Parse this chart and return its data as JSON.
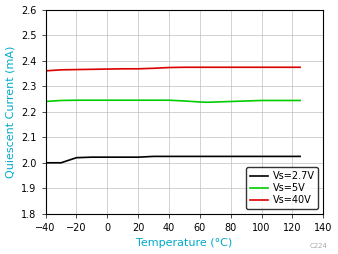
{
  "title": "",
  "xlabel": "Temperature (°C)",
  "ylabel": "Quiescent Current (mA)",
  "xlim": [
    -40,
    140
  ],
  "ylim": [
    1.8,
    2.6
  ],
  "xticks": [
    -40,
    -20,
    0,
    20,
    40,
    60,
    80,
    100,
    120,
    140
  ],
  "yticks": [
    1.8,
    1.9,
    2.0,
    2.1,
    2.2,
    2.3,
    2.4,
    2.5,
    2.6
  ],
  "background_color": "#ffffff",
  "grid_color": "#c0c0c0",
  "axis_label_color": "#00aacc",
  "tick_label_color": "#000000",
  "series": [
    {
      "label": "Vs=2.7V",
      "color": "#000000",
      "x": [
        -40,
        -30,
        -20,
        -10,
        0,
        10,
        20,
        30,
        40,
        50,
        60,
        70,
        80,
        90,
        100,
        110,
        120,
        125
      ],
      "y": [
        2.0,
        2.0,
        2.02,
        2.022,
        2.022,
        2.022,
        2.022,
        2.025,
        2.025,
        2.025,
        2.025,
        2.025,
        2.025,
        2.025,
        2.025,
        2.025,
        2.025,
        2.025
      ]
    },
    {
      "label": "Vs=5V",
      "color": "#00cc00",
      "x": [
        -40,
        -30,
        -20,
        -10,
        0,
        10,
        20,
        30,
        40,
        50,
        55,
        60,
        65,
        70,
        80,
        90,
        100,
        110,
        120,
        125
      ],
      "y": [
        2.24,
        2.244,
        2.245,
        2.245,
        2.245,
        2.245,
        2.245,
        2.245,
        2.245,
        2.242,
        2.24,
        2.238,
        2.237,
        2.238,
        2.24,
        2.242,
        2.244,
        2.244,
        2.244,
        2.244
      ]
    },
    {
      "label": "Vs=40V",
      "color": "#dd0000",
      "x": [
        -40,
        -30,
        -20,
        -10,
        0,
        10,
        20,
        30,
        40,
        50,
        60,
        70,
        80,
        90,
        100,
        110,
        120,
        125
      ],
      "y": [
        2.36,
        2.364,
        2.365,
        2.366,
        2.367,
        2.368,
        2.368,
        2.37,
        2.373,
        2.374,
        2.374,
        2.374,
        2.374,
        2.374,
        2.374,
        2.374,
        2.374,
        2.374
      ]
    }
  ],
  "annotation": "C224",
  "annotation_color": "#aaaaaa",
  "linewidth": 1.2,
  "tick_fontsize": 7,
  "label_fontsize": 8,
  "legend_fontsize": 7
}
